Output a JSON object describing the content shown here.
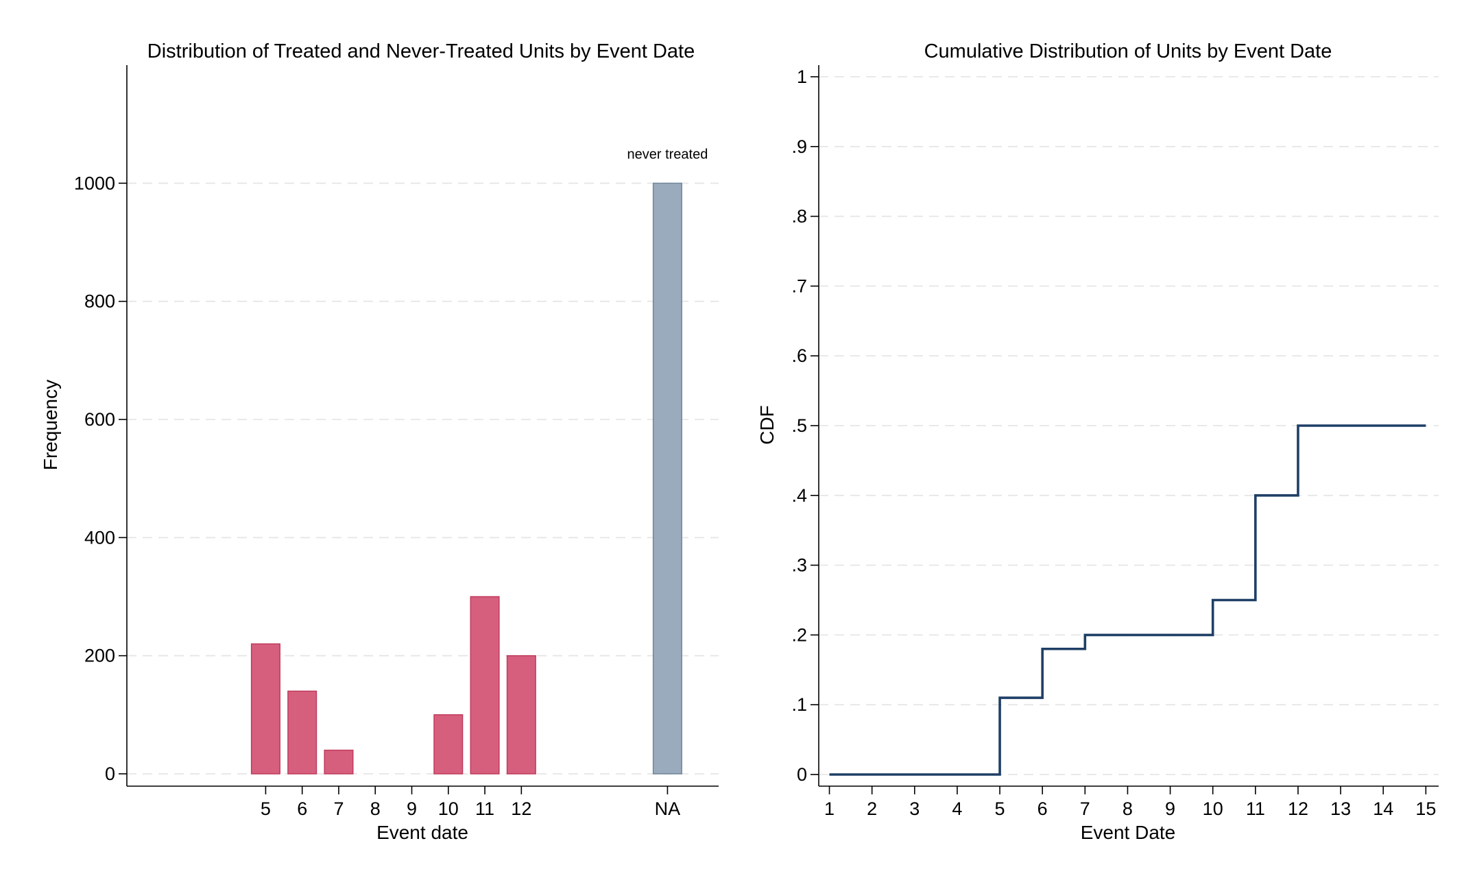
{
  "chart_data": [
    {
      "type": "bar",
      "title": "Distribution of Treated and Never-Treated Units by Event Date",
      "xlabel": "Event date",
      "ylabel": "Frequency",
      "ylim": [
        0,
        1200
      ],
      "y_ticks": [
        0,
        200,
        400,
        600,
        800,
        1000
      ],
      "y_tick_labels": [
        "0",
        "200",
        "400",
        "600",
        "800",
        "1000"
      ],
      "x_ticks": [
        5,
        6,
        7,
        8,
        9,
        10,
        11,
        12,
        16
      ],
      "x_tick_labels": [
        "5",
        "6",
        "7",
        "8",
        "9",
        "10",
        "11",
        "12",
        "NA"
      ],
      "xlim": [
        1.2,
        17.4
      ],
      "grid": true,
      "series": [
        {
          "name": "treated",
          "color": "#d65f7e",
          "edge_color": "#c03a5c",
          "x": [
            5,
            6,
            7,
            10,
            11,
            12
          ],
          "values": [
            220,
            140,
            40,
            100,
            300,
            200
          ]
        },
        {
          "name": "never treated",
          "color": "#9aabbd",
          "edge_color": "#6f8599",
          "x": [
            16
          ],
          "values": [
            1000
          ]
        }
      ],
      "annotations": [
        {
          "text": "never treated",
          "x": 16,
          "y": 1000
        }
      ]
    },
    {
      "type": "line",
      "title": "Cumulative Distribution of Units by Event Date",
      "xlabel": "Event Date",
      "ylabel": "CDF",
      "ylim": [
        0,
        1
      ],
      "xlim": [
        0.75,
        15.3
      ],
      "y_ticks": [
        0,
        0.1,
        0.2,
        0.3,
        0.4,
        0.5,
        0.6,
        0.7,
        0.8,
        0.9,
        1
      ],
      "y_tick_labels": [
        "0",
        ".1",
        ".2",
        ".3",
        ".4",
        ".5",
        ".6",
        ".7",
        ".8",
        ".9",
        "1"
      ],
      "x_ticks": [
        1,
        2,
        3,
        4,
        5,
        6,
        7,
        8,
        9,
        10,
        11,
        12,
        13,
        14,
        15
      ],
      "x_tick_labels": [
        "1",
        "2",
        "3",
        "4",
        "5",
        "6",
        "7",
        "8",
        "9",
        "10",
        "11",
        "12",
        "13",
        "14",
        "15"
      ],
      "grid": true,
      "step": true,
      "line_color": "#1f3f66",
      "x": [
        1,
        2,
        3,
        4,
        5,
        6,
        7,
        8,
        9,
        10,
        11,
        12,
        13,
        14,
        15
      ],
      "values": [
        0,
        0,
        0,
        0,
        0.11,
        0.18,
        0.2,
        0.2,
        0.2,
        0.25,
        0.4,
        0.5,
        0.5,
        0.5,
        0.5
      ]
    }
  ]
}
